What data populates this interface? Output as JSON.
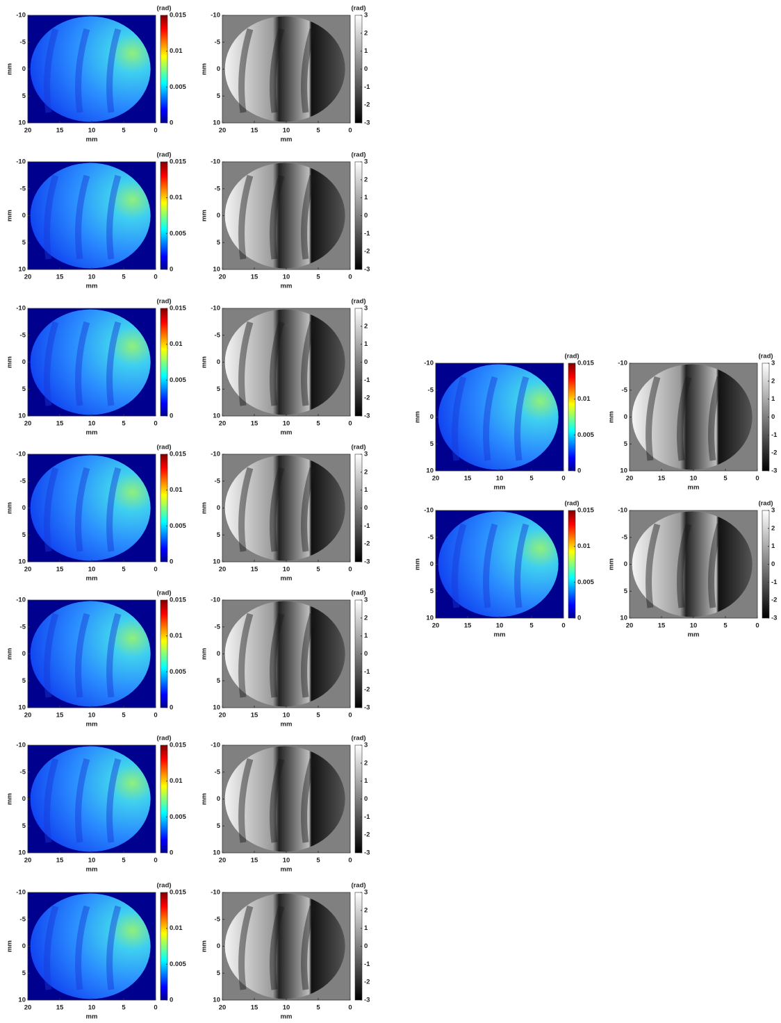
{
  "chart_data": [
    {
      "type": "heatmap",
      "xlabel": "mm",
      "ylabel": "mm",
      "xlim": [
        20,
        0
      ],
      "ylim": [
        10,
        -10
      ],
      "xticks": [
        20,
        15,
        10,
        5,
        0
      ],
      "yticks": [
        -10,
        -5,
        0,
        5,
        10
      ],
      "colorbar": {
        "label": "(rad)",
        "colormap": "jet",
        "lim": [
          0,
          0.015
        ],
        "ticks": [
          0,
          0.005,
          0.01,
          0.015
        ]
      }
    },
    {
      "type": "heatmap",
      "xlabel": "mm",
      "ylabel": "mm",
      "xlim": [
        20,
        0
      ],
      "ylim": [
        10,
        -10
      ],
      "xticks": [
        20,
        15,
        10,
        5,
        0
      ],
      "yticks": [
        -10,
        -5,
        0,
        5,
        10
      ],
      "colorbar": {
        "label": "(rad)",
        "colormap": "gray",
        "lim": [
          -3,
          3
        ],
        "ticks": [
          -3,
          -2,
          -1,
          0,
          1,
          2,
          3
        ]
      }
    },
    {
      "type": "heatmap",
      "xlabel": "mm",
      "ylabel": "mm",
      "xlim": [
        20,
        0
      ],
      "ylim": [
        10,
        -10
      ],
      "xticks": [
        20,
        15,
        10,
        5,
        0
      ],
      "yticks": [
        -10,
        -5,
        0,
        5,
        10
      ],
      "colorbar": {
        "label": "(rad)",
        "colormap": "jet",
        "lim": [
          0,
          0.015
        ],
        "ticks": [
          0,
          0.005,
          0.01,
          0.015
        ]
      }
    },
    {
      "type": "heatmap",
      "xlabel": "mm",
      "ylabel": "mm",
      "xlim": [
        20,
        0
      ],
      "ylim": [
        10,
        -10
      ],
      "xticks": [
        20,
        15,
        10,
        5,
        0
      ],
      "yticks": [
        -10,
        -5,
        0,
        5,
        10
      ],
      "colorbar": {
        "label": "(rad)",
        "colormap": "gray",
        "lim": [
          -3,
          3
        ],
        "ticks": [
          -3,
          -2,
          -1,
          0,
          1,
          2,
          3
        ]
      }
    },
    {
      "type": "heatmap",
      "xlabel": "mm",
      "ylabel": "mm",
      "xlim": [
        20,
        0
      ],
      "ylim": [
        10,
        -10
      ],
      "xticks": [
        20,
        15,
        10,
        5,
        0
      ],
      "yticks": [
        -10,
        -5,
        0,
        5,
        10
      ],
      "colorbar": {
        "label": "(rad)",
        "colormap": "jet",
        "lim": [
          0,
          0.015
        ],
        "ticks": [
          0,
          0.005,
          0.01,
          0.015
        ]
      }
    },
    {
      "type": "heatmap",
      "xlabel": "mm",
      "ylabel": "mm",
      "xlim": [
        20,
        0
      ],
      "ylim": [
        10,
        -10
      ],
      "xticks": [
        20,
        15,
        10,
        5,
        0
      ],
      "yticks": [
        -10,
        -5,
        0,
        5,
        10
      ],
      "colorbar": {
        "label": "(rad)",
        "colormap": "gray",
        "lim": [
          -3,
          3
        ],
        "ticks": [
          -3,
          -2,
          -1,
          0,
          1,
          2,
          3
        ]
      }
    },
    {
      "type": "heatmap",
      "xlabel": "mm",
      "ylabel": "mm",
      "xlim": [
        20,
        0
      ],
      "ylim": [
        10,
        -10
      ],
      "xticks": [
        20,
        15,
        10,
        5,
        0
      ],
      "yticks": [
        -10,
        -5,
        0,
        5,
        10
      ],
      "colorbar": {
        "label": "(rad)",
        "colormap": "jet",
        "lim": [
          0,
          0.015
        ],
        "ticks": [
          0,
          0.005,
          0.01,
          0.015
        ]
      }
    },
    {
      "type": "heatmap",
      "xlabel": "mm",
      "ylabel": "mm",
      "xlim": [
        20,
        0
      ],
      "ylim": [
        10,
        -10
      ],
      "xticks": [
        20,
        15,
        10,
        5,
        0
      ],
      "yticks": [
        -10,
        -5,
        0,
        5,
        10
      ],
      "colorbar": {
        "label": "(rad)",
        "colormap": "gray",
        "lim": [
          -3,
          3
        ],
        "ticks": [
          -3,
          -2,
          -1,
          0,
          1,
          2,
          3
        ]
      }
    },
    {
      "type": "heatmap",
      "xlabel": "mm",
      "ylabel": "mm",
      "xlim": [
        20,
        0
      ],
      "ylim": [
        10,
        -10
      ],
      "xticks": [
        20,
        15,
        10,
        5,
        0
      ],
      "yticks": [
        -10,
        -5,
        0,
        5,
        10
      ],
      "colorbar": {
        "label": "(rad)",
        "colormap": "jet",
        "lim": [
          0,
          0.015
        ],
        "ticks": [
          0,
          0.005,
          0.01,
          0.015
        ]
      }
    },
    {
      "type": "heatmap",
      "xlabel": "mm",
      "ylabel": "mm",
      "xlim": [
        20,
        0
      ],
      "ylim": [
        10,
        -10
      ],
      "xticks": [
        20,
        15,
        10,
        5,
        0
      ],
      "yticks": [
        -10,
        -5,
        0,
        5,
        10
      ],
      "colorbar": {
        "label": "(rad)",
        "colormap": "gray",
        "lim": [
          -3,
          3
        ],
        "ticks": [
          -3,
          -2,
          -1,
          0,
          1,
          2,
          3
        ]
      }
    },
    {
      "type": "heatmap",
      "xlabel": "mm",
      "ylabel": "mm",
      "xlim": [
        20,
        0
      ],
      "ylim": [
        10,
        -10
      ],
      "xticks": [
        20,
        15,
        10,
        5,
        0
      ],
      "yticks": [
        -10,
        -5,
        0,
        5,
        10
      ],
      "colorbar": {
        "label": "(rad)",
        "colormap": "jet",
        "lim": [
          0,
          0.015
        ],
        "ticks": [
          0,
          0.005,
          0.01,
          0.015
        ]
      }
    },
    {
      "type": "heatmap",
      "xlabel": "mm",
      "ylabel": "mm",
      "xlim": [
        20,
        0
      ],
      "ylim": [
        10,
        -10
      ],
      "xticks": [
        20,
        15,
        10,
        5,
        0
      ],
      "yticks": [
        -10,
        -5,
        0,
        5,
        10
      ],
      "colorbar": {
        "label": "(rad)",
        "colormap": "gray",
        "lim": [
          -3,
          3
        ],
        "ticks": [
          -3,
          -2,
          -1,
          0,
          1,
          2,
          3
        ]
      }
    },
    {
      "type": "heatmap",
      "xlabel": "mm",
      "ylabel": "mm",
      "xlim": [
        20,
        0
      ],
      "ylim": [
        10,
        -10
      ],
      "xticks": [
        20,
        15,
        10,
        5,
        0
      ],
      "yticks": [
        -10,
        -5,
        0,
        5,
        10
      ],
      "colorbar": {
        "label": "(rad)",
        "colormap": "jet",
        "lim": [
          0,
          0.015
        ],
        "ticks": [
          0,
          0.005,
          0.01,
          0.015
        ]
      }
    },
    {
      "type": "heatmap",
      "xlabel": "mm",
      "ylabel": "mm",
      "xlim": [
        20,
        0
      ],
      "ylim": [
        10,
        -10
      ],
      "xticks": [
        20,
        15,
        10,
        5,
        0
      ],
      "yticks": [
        -10,
        -5,
        0,
        5,
        10
      ],
      "colorbar": {
        "label": "(rad)",
        "colormap": "gray",
        "lim": [
          -3,
          3
        ],
        "ticks": [
          -3,
          -2,
          -1,
          0,
          1,
          2,
          3
        ]
      }
    },
    {
      "type": "heatmap",
      "xlabel": "mm",
      "ylabel": "mm",
      "xlim": [
        20,
        0
      ],
      "ylim": [
        10,
        -10
      ],
      "xticks": [
        20,
        15,
        10,
        5,
        0
      ],
      "yticks": [
        -10,
        -5,
        0,
        5,
        10
      ],
      "colorbar": {
        "label": "(rad)",
        "colormap": "jet",
        "lim": [
          0,
          0.015
        ],
        "ticks": [
          0,
          0.005,
          0.01,
          0.015
        ]
      }
    },
    {
      "type": "heatmap",
      "xlabel": "mm",
      "ylabel": "mm",
      "xlim": [
        20,
        0
      ],
      "ylim": [
        10,
        -10
      ],
      "xticks": [
        20,
        15,
        10,
        5,
        0
      ],
      "yticks": [
        -10,
        -5,
        0,
        5,
        10
      ],
      "colorbar": {
        "label": "(rad)",
        "colormap": "gray",
        "lim": [
          -3,
          3
        ],
        "ticks": [
          -3,
          -2,
          -1,
          0,
          1,
          2,
          3
        ]
      }
    },
    {
      "type": "heatmap",
      "xlabel": "mm",
      "ylabel": "mm",
      "xlim": [
        20,
        0
      ],
      "ylim": [
        10,
        -10
      ],
      "xticks": [
        20,
        15,
        10,
        5,
        0
      ],
      "yticks": [
        -10,
        -5,
        0,
        5,
        10
      ],
      "colorbar": {
        "label": "(rad)",
        "colormap": "jet",
        "lim": [
          0,
          0.015
        ],
        "ticks": [
          0,
          0.005,
          0.01,
          0.015
        ]
      }
    },
    {
      "type": "heatmap",
      "xlabel": "mm",
      "ylabel": "mm",
      "xlim": [
        20,
        0
      ],
      "ylim": [
        10,
        -10
      ],
      "xticks": [
        20,
        15,
        10,
        5,
        0
      ],
      "yticks": [
        -10,
        -5,
        0,
        5,
        10
      ],
      "colorbar": {
        "label": "(rad)",
        "colormap": "gray",
        "lim": [
          -3,
          3
        ],
        "ticks": [
          -3,
          -2,
          -1,
          0,
          1,
          2,
          3
        ]
      }
    }
  ]
}
